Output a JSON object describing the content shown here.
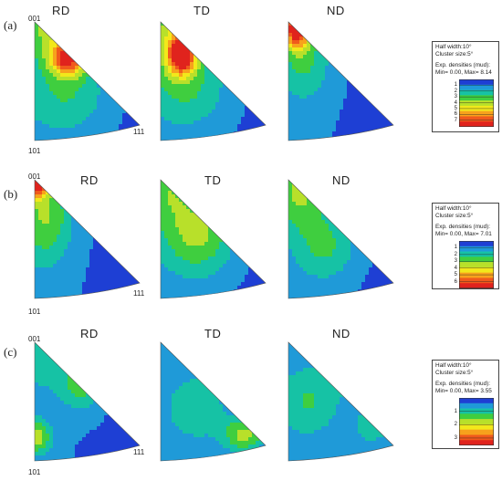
{
  "poles": {
    "top": "001",
    "bottom": "101",
    "right": "111"
  },
  "columns": [
    "RD",
    "TD",
    "ND"
  ],
  "colors": [
    "#1e3fd4",
    "#1f9ad8",
    "#16c2a5",
    "#3fce3f",
    "#b8e02a",
    "#f2e81b",
    "#f7a21c",
    "#f05a1c",
    "#e0231d"
  ],
  "rows": [
    {
      "label": "(a)",
      "legend": {
        "line1": "Half width:10°",
        "line2": "Cluster size:5°",
        "line3": "Exp. densities (mud):",
        "line4": "Min= 0.00, Max= 8.14",
        "ticks": [
          "1",
          "2",
          "3",
          "4",
          "5",
          "6",
          "7"
        ],
        "max": 8.14
      },
      "maps": [
        [
          [
            0.32,
            0.3,
            0.17,
            0.15,
            6.5
          ],
          [
            0.14,
            0.0,
            0.3,
            0.3,
            3.2
          ],
          [
            0.3,
            0.6,
            0.4,
            0.35,
            2.0
          ]
        ],
        [
          [
            0.2,
            0.28,
            0.13,
            0.16,
            6.8
          ],
          [
            0.15,
            0.05,
            0.3,
            0.35,
            3.2
          ],
          [
            0.25,
            0.55,
            0.4,
            0.35,
            2.0
          ]
        ],
        [
          [
            0.08,
            0.04,
            0.12,
            0.17,
            8.0
          ],
          [
            0.15,
            0.3,
            0.25,
            0.35,
            2.2
          ]
        ]
      ]
    },
    {
      "label": "(b)",
      "legend": {
        "line1": "Half width:10°",
        "line2": "Cluster size:5°",
        "line3": "Exp. densities (mud):",
        "line4": "Min= 0.00, Max= 7.01",
        "ticks": [
          "1",
          "2",
          "3",
          "4",
          "5",
          "6"
        ],
        "max": 7.01
      },
      "maps": [
        [
          [
            0.03,
            0.02,
            0.1,
            0.12,
            7.0
          ],
          [
            0.1,
            0.3,
            0.25,
            0.4,
            3.0
          ]
        ],
        [
          [
            0.35,
            0.45,
            0.35,
            0.35,
            3.3
          ],
          [
            0.05,
            0.05,
            0.25,
            0.3,
            2.3
          ]
        ],
        [
          [
            0.1,
            0.1,
            0.25,
            0.3,
            3.0
          ],
          [
            0.35,
            0.55,
            0.3,
            0.3,
            2.2
          ]
        ]
      ]
    },
    {
      "label": "(c)",
      "legend": {
        "line1": "Half width:10°",
        "line2": "Cluster size:5°",
        "line3": "Exp. densities (mud):",
        "line4": "Min= 0.00, Max= 3.55",
        "ticks": [
          "1",
          "2",
          "3"
        ],
        "max": 3.55
      },
      "maps": [
        [
          [
            0.02,
            0.8,
            0.14,
            0.14,
            3.5
          ],
          [
            0.45,
            0.35,
            0.2,
            0.22,
            2.6
          ],
          [
            0.1,
            0.1,
            0.25,
            0.3,
            1.7
          ]
        ],
        [
          [
            0.8,
            0.78,
            0.2,
            0.15,
            3.5
          ],
          [
            0.35,
            0.55,
            0.3,
            0.3,
            1.8
          ]
        ],
        [
          [
            0.52,
            0.22,
            0.17,
            0.16,
            3.2
          ],
          [
            0.2,
            0.5,
            0.3,
            0.3,
            2.0
          ],
          [
            0.8,
            0.7,
            0.2,
            0.2,
            1.8
          ]
        ]
      ]
    }
  ]
}
